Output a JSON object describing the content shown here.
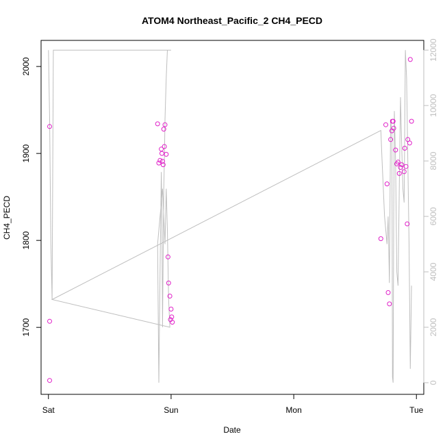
{
  "chart_data": {
    "type": "scatter",
    "title": "ATOM4 Northeast_Pacific_2 CH4_PECD",
    "xlabel": "Date",
    "ylabel": "CH4_PECD",
    "x_ticks": [
      {
        "label": "Sat",
        "value": 0
      },
      {
        "label": "Sun",
        "value": 1
      },
      {
        "label": "Mon",
        "value": 2
      },
      {
        "label": "Tue",
        "value": 3
      }
    ],
    "xlim": [
      -0.06,
      3.06
    ],
    "ylim": [
      1623,
      2030
    ],
    "y_ticks": [
      1700,
      1800,
      1900,
      2000
    ],
    "y2lim": [
      -420,
      12350
    ],
    "y2_ticks": [
      0,
      2000,
      4000,
      6000,
      8000,
      10000,
      12000
    ],
    "colors": {
      "points": "#e01ec8",
      "line": "#bebebe",
      "right_axis": "#bebebe"
    },
    "series": [
      {
        "axis": "left",
        "style": "points",
        "points": [
          [
            0.01,
            1931
          ],
          [
            0.01,
            1707
          ],
          [
            0.01,
            1639
          ],
          [
            0.89,
            1934
          ],
          [
            0.9,
            1889
          ],
          [
            0.91,
            1892
          ],
          [
            0.92,
            1905
          ],
          [
            0.925,
            1900
          ],
          [
            0.93,
            1891
          ],
          [
            0.935,
            1887
          ],
          [
            0.94,
            1928
          ],
          [
            0.945,
            1908
          ],
          [
            0.95,
            1933
          ],
          [
            0.96,
            1899
          ],
          [
            0.975,
            1781
          ],
          [
            0.98,
            1751
          ],
          [
            0.99,
            1736
          ],
          [
            0.995,
            1709
          ],
          [
            1.0,
            1721
          ],
          [
            1.005,
            1712
          ],
          [
            1.01,
            1706
          ],
          [
            2.71,
            1802
          ],
          [
            2.75,
            1933
          ],
          [
            2.76,
            1865
          ],
          [
            2.77,
            1740
          ],
          [
            2.78,
            1727
          ],
          [
            2.79,
            1916
          ],
          [
            2.8,
            1926
          ],
          [
            2.805,
            1937
          ],
          [
            2.81,
            1937
          ],
          [
            2.815,
            1929
          ],
          [
            2.83,
            1904
          ],
          [
            2.84,
            1888
          ],
          [
            2.85,
            1890
          ],
          [
            2.86,
            1877
          ],
          [
            2.87,
            1884
          ],
          [
            2.88,
            1887
          ],
          [
            2.9,
            1879
          ],
          [
            2.905,
            1906
          ],
          [
            2.915,
            1885
          ],
          [
            2.925,
            1819
          ],
          [
            2.93,
            1916
          ],
          [
            2.945,
            1912
          ],
          [
            2.95,
            2008
          ],
          [
            2.96,
            1937
          ]
        ]
      },
      {
        "axis": "right",
        "style": "line",
        "points": [
          [
            0.0,
            12000
          ],
          [
            0.01,
            9500
          ],
          [
            0.02,
            5000
          ],
          [
            0.03,
            3000
          ],
          [
            0.04,
            12000
          ],
          [
            1.0,
            12000
          ],
          [
            0.97,
            12000
          ],
          [
            0.96,
            11000
          ],
          [
            0.95,
            9500
          ],
          [
            0.945,
            8000
          ],
          [
            0.94,
            7000
          ],
          [
            0.93,
            2000
          ],
          [
            0.925,
            6000
          ],
          [
            0.92,
            7600
          ],
          [
            0.91,
            4000
          ],
          [
            0.9,
            0
          ],
          [
            0.89,
            5000
          ],
          [
            0.93,
            7000
          ],
          [
            0.95,
            5000
          ],
          [
            0.96,
            7000
          ],
          [
            0.97,
            5500
          ],
          [
            0.98,
            3000
          ],
          [
            0.99,
            2000
          ],
          [
            0.03,
            3000
          ],
          [
            2.71,
            9100
          ],
          [
            2.72,
            8000
          ],
          [
            2.74,
            6000
          ],
          [
            2.76,
            5000
          ],
          [
            2.77,
            6000
          ],
          [
            2.78,
            3600
          ],
          [
            2.79,
            9500
          ],
          [
            2.8,
            9000
          ],
          [
            2.805,
            200
          ],
          [
            2.81,
            0
          ],
          [
            2.815,
            6000
          ],
          [
            2.82,
            9800
          ],
          [
            2.83,
            8000
          ],
          [
            2.84,
            4000
          ],
          [
            2.85,
            3500
          ],
          [
            2.86,
            7000
          ],
          [
            2.87,
            10300
          ],
          [
            2.88,
            8500
          ],
          [
            2.89,
            7000
          ],
          [
            2.9,
            6500
          ],
          [
            2.91,
            12000
          ],
          [
            2.92,
            11000
          ],
          [
            2.93,
            8000
          ],
          [
            2.94,
            5000
          ],
          [
            2.95,
            500
          ],
          [
            2.96,
            3500
          ]
        ]
      }
    ]
  }
}
